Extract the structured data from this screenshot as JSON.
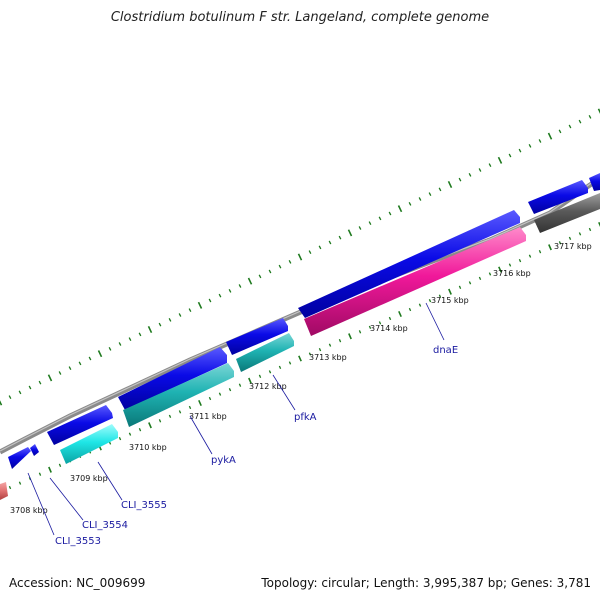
{
  "title": "Clostridium botulinum F str. Langeland, complete genome",
  "accession": "Accession: NC_009699",
  "summary": "Topology: circular; Length: 3,995,387 bp; Genes: 3,781",
  "colors": {
    "backbone": "#8c8c8c",
    "tick": "#1f7a1f",
    "gene_forward": "#1010e0",
    "gene_cyan": "#1fdede",
    "gene_teal": "#1fb3b3",
    "gene_magenta": "#f0189a",
    "gene_grey": "#5a5a5a",
    "gene_salmon": "#e07070",
    "label": "#1a1aa0"
  },
  "tick_labels": [
    "3708 kbp",
    "3709 kbp",
    "3710 kbp",
    "3711 kbp",
    "3712 kbp",
    "3713 kbp",
    "3714 kbp",
    "3715 kbp",
    "3716 kbp",
    "3717 kbp"
  ],
  "gene_labels": [
    "CLI_3553",
    "CLI_3554",
    "CLI_3555",
    "pykA",
    "pfkA",
    "dnaE"
  ]
}
